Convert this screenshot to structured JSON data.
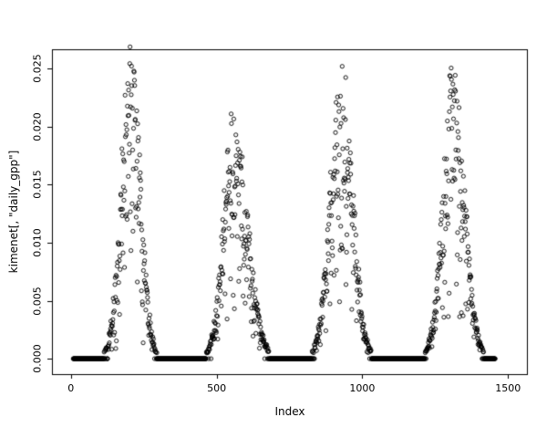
{
  "chart_data": {
    "type": "scatter",
    "title": "",
    "xlabel": "Index",
    "ylabel": "kimenet[, \"daily_gpp\"]",
    "xlim": [
      -65,
      1565
    ],
    "ylim": [
      -0.00133,
      0.02667
    ],
    "x_ticks": [
      0,
      500,
      1000,
      1500
    ],
    "x_tick_labels": [
      "0",
      "500",
      "1000",
      "1500"
    ],
    "y_ticks": [
      0,
      0.005,
      0.01,
      0.015,
      0.02,
      0.025
    ],
    "y_tick_labels": [
      "0.000",
      "0.005",
      "0.010",
      "0.015",
      "0.020",
      "0.025"
    ],
    "grid": false,
    "legend": false,
    "point_style": "open-circle",
    "point_color": "#000000",
    "background_color": "#ffffff",
    "x_start": 8,
    "x_end": 1456,
    "baseline_value": 0,
    "seed": 20230611,
    "seasons": [
      {
        "start": 132,
        "peak": 207,
        "end": 278,
        "max": 0.0256
      },
      {
        "start": 482,
        "peak": 556,
        "end": 662,
        "max": 0.0206
      },
      {
        "start": 846,
        "peak": 929,
        "end": 1012,
        "max": 0.0256
      },
      {
        "start": 1234,
        "peak": 1312,
        "end": 1398,
        "max": 0.0246
      }
    ],
    "noise": {
      "scatter_exponent": 0.35,
      "zero_threshold": 0.0005,
      "sigma_divisor": 2.2,
      "season_window_pad": 18
    }
  }
}
